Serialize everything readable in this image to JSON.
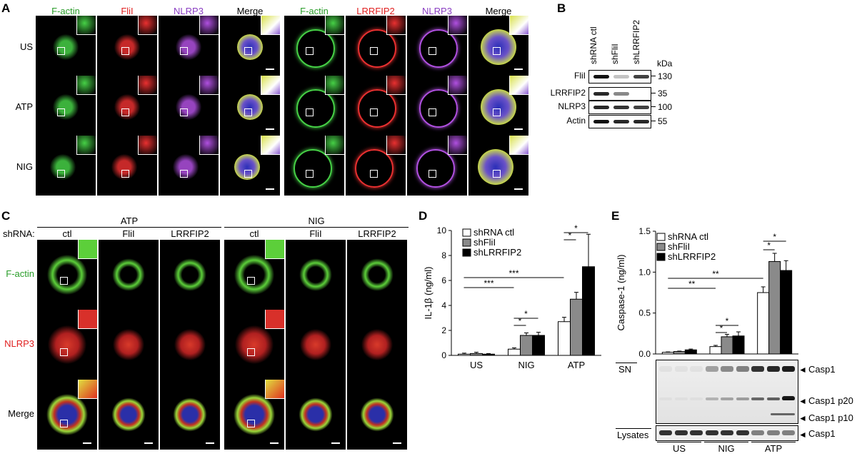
{
  "panelA": {
    "label": "A",
    "headers_left": [
      "F-actin",
      "FliI",
      "NLRP3",
      "Merge"
    ],
    "headers_right": [
      "F-actin",
      "LRRFIP2",
      "NLRP3",
      "Merge"
    ],
    "header_colors": [
      "#2a9d2a",
      "#e02020",
      "#8a3ec2",
      "#000000"
    ],
    "rows": [
      "US",
      "ATP",
      "NIG"
    ]
  },
  "panelB": {
    "label": "B",
    "lanes": [
      "shRNA ctl",
      "shFliI",
      "shLRRFIP2"
    ],
    "unit": "kDa",
    "rows": [
      {
        "name": "FliI",
        "marker": "130"
      },
      {
        "name": "LRRFIP2",
        "marker": "35"
      },
      {
        "name": "NLRP3",
        "marker": "100"
      },
      {
        "name": "Actin",
        "marker": "55"
      }
    ]
  },
  "panelC": {
    "label": "C",
    "shrna_label": "shRNA:",
    "groups": [
      "ATP",
      "NIG"
    ],
    "columns": [
      "ctl",
      "FliI",
      "LRRFIP2",
      "ctl",
      "FliI",
      "LRRFIP2"
    ],
    "rows": [
      {
        "name": "F-actin",
        "color": "#2a9d2a"
      },
      {
        "name": "NLRP3",
        "color": "#e02020"
      },
      {
        "name": "Merge",
        "color": "#000000"
      }
    ]
  },
  "panelD": {
    "label": "D",
    "ylabel": "IL-1β (ng/ml)",
    "legend": [
      "shRNA ctl",
      "shFliI",
      "shLRRFIP2"
    ],
    "sig": {
      "three": "***",
      "one": "*"
    }
  },
  "panelE": {
    "label": "E",
    "ylabel": "Caspase-1 (ng/ml)",
    "legend": [
      "shRNA ctl",
      "shFliI",
      "shLRRFIP2"
    ],
    "sig": {
      "two": "**",
      "one": "*"
    },
    "blot_sn_label": "SN",
    "blot_lys_label": "Lysates",
    "blot_bands": [
      "Casp1",
      "Casp1 p20",
      "Casp1 p10"
    ],
    "blot_lys_band": "Casp1",
    "groups": [
      "US",
      "NIG",
      "ATP"
    ]
  },
  "chart_data": [
    {
      "type": "bar",
      "categories": [
        "US",
        "NIG",
        "ATP"
      ],
      "series": [
        {
          "name": "shRNA ctl",
          "values": [
            0.1,
            0.5,
            2.7
          ],
          "errors": [
            0.08,
            0.1,
            0.35
          ]
        },
        {
          "name": "shFliI",
          "values": [
            0.15,
            1.6,
            4.5
          ],
          "errors": [
            0.1,
            0.2,
            0.55
          ]
        },
        {
          "name": "shLRRFIP2",
          "values": [
            0.1,
            1.6,
            7.1
          ],
          "errors": [
            0.05,
            0.25,
            2.6
          ]
        }
      ],
      "colors": [
        "#ffffff",
        "#8a8a8a",
        "#000000"
      ],
      "ylabel": "IL-1β (ng/ml)",
      "ylim": [
        0,
        10
      ],
      "yticks": [
        0,
        2,
        4,
        6,
        8,
        10
      ],
      "legend": "top-left"
    },
    {
      "type": "bar",
      "categories": [
        "US",
        "NIG",
        "ATP"
      ],
      "series": [
        {
          "name": "shRNA ctl",
          "values": [
            0.02,
            0.09,
            0.75
          ],
          "errors": [
            0.005,
            0.015,
            0.07
          ]
        },
        {
          "name": "shFliI",
          "values": [
            0.03,
            0.21,
            1.13
          ],
          "errors": [
            0.005,
            0.03,
            0.1
          ]
        },
        {
          "name": "shLRRFIP2",
          "values": [
            0.05,
            0.22,
            1.02
          ],
          "errors": [
            0.01,
            0.05,
            0.12
          ]
        }
      ],
      "colors": [
        "#ffffff",
        "#8a8a8a",
        "#000000"
      ],
      "ylabel": "Caspase-1 (ng/ml)",
      "ylim": [
        0,
        1.5
      ],
      "yticks": [
        "0.0",
        "0.5",
        "1.0",
        "1.5"
      ],
      "legend": "top-left"
    }
  ]
}
